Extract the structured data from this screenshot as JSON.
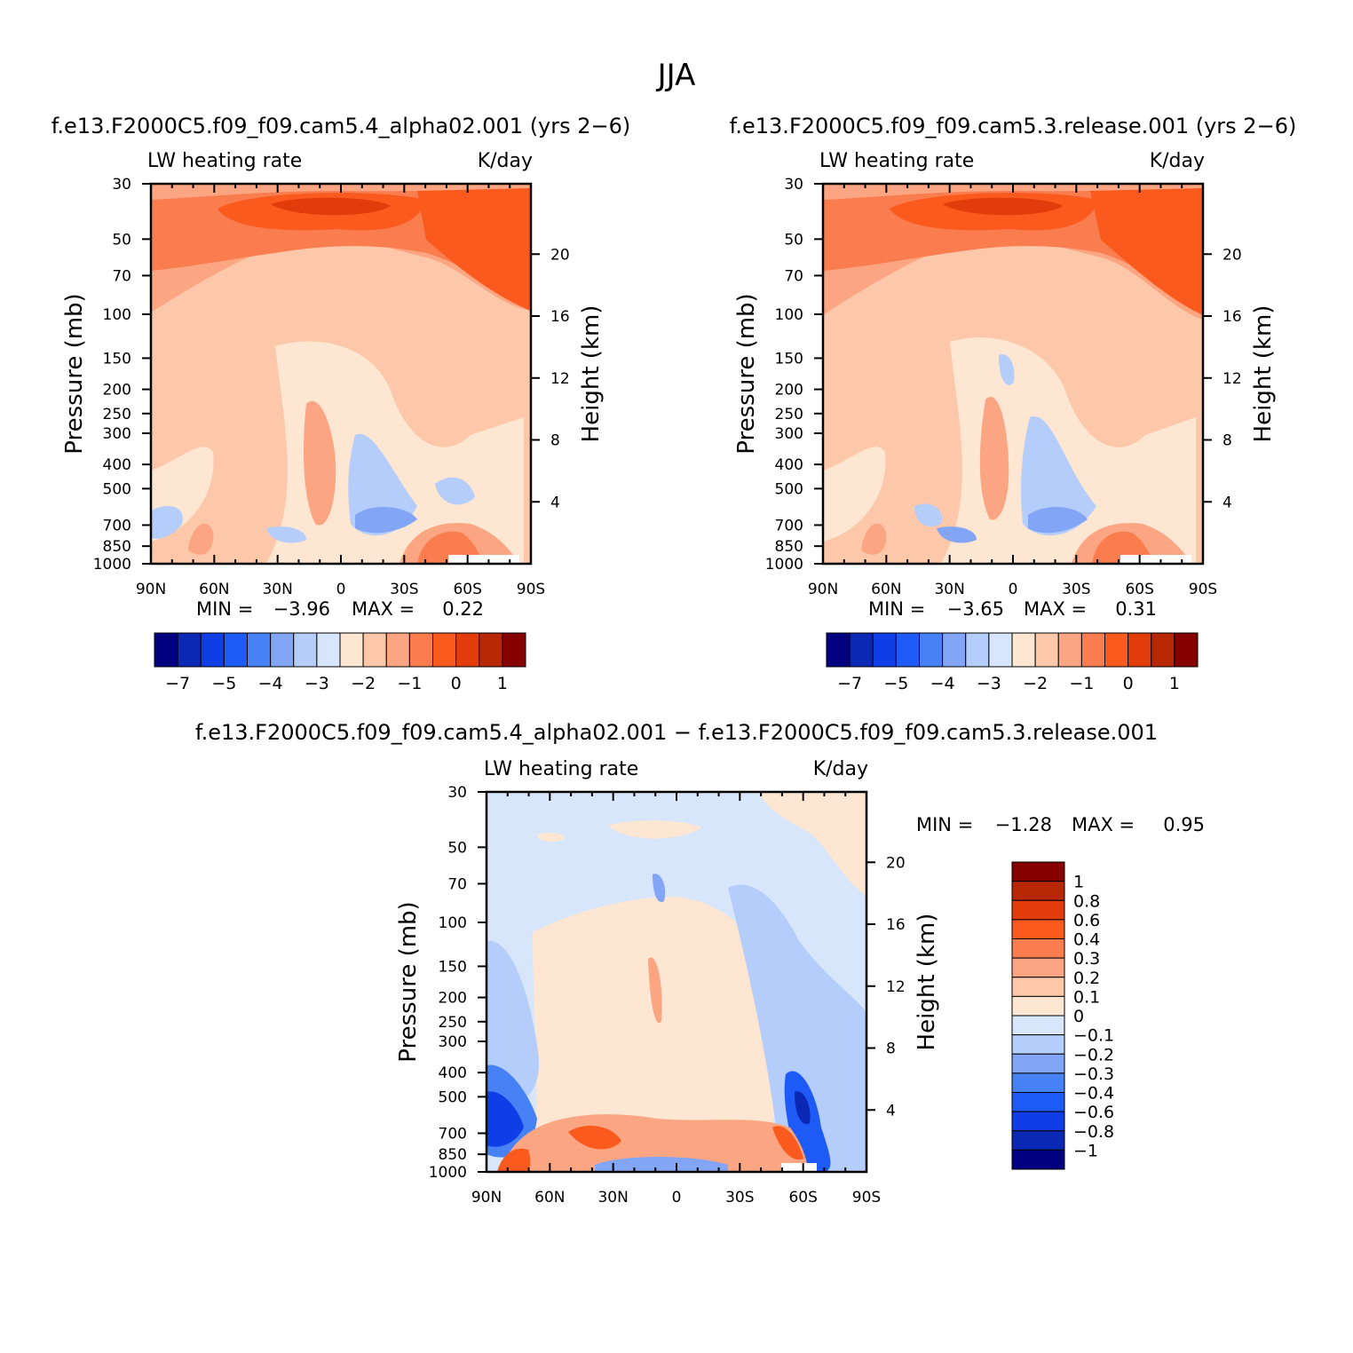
{
  "figure": {
    "season": "JJA",
    "diff_title": "f.e13.F2000C5.f09_f09.cam5.4_alpha02.001 − f.e13.F2000C5.f09_f09.cam5.3.release.001"
  },
  "chart_data": [
    {
      "type": "heatmap",
      "id": "case1",
      "title": "f.e13.F2000C5.f09_f09.cam5.4_alpha02.001 (yrs 2−6)",
      "left_label": "LW heating rate",
      "right_label": "K/day",
      "xlabel": "",
      "ylabel": "Pressure (mb)",
      "y2label": "Height (km)",
      "xticks": [
        "90N",
        "60N",
        "30N",
        "0",
        "30S",
        "60S",
        "90S"
      ],
      "yticks": [
        "30",
        "50",
        "70",
        "100",
        "150",
        "200",
        "250",
        "300",
        "400",
        "500",
        "700",
        "850",
        "1000"
      ],
      "y2ticks": [
        "20",
        "16",
        "12",
        "8",
        "4"
      ],
      "min_label": "MIN =",
      "min_value": "−3.96",
      "max_label": "MAX =",
      "max_value": "0.22",
      "colorbar_labels": [
        "−7",
        "−5",
        "−4",
        "−3",
        "−2",
        "−1",
        "0",
        "1"
      ],
      "colors": [
        "#000080",
        "#0a28b4",
        "#0f3ee6",
        "#1e5af5",
        "#4682f5",
        "#82a5f5",
        "#b4cdfa",
        "#d7e6fa",
        "#fde6d2",
        "#fdc8aa",
        "#fca582",
        "#fa7d50",
        "#fa5a1e",
        "#e13c0a",
        "#b92805",
        "#870000"
      ]
    },
    {
      "type": "heatmap",
      "id": "case2",
      "title": "f.e13.F2000C5.f09_f09.cam5.3.release.001 (yrs 2−6)",
      "left_label": "LW heating rate",
      "right_label": "K/day",
      "xlabel": "",
      "ylabel": "Pressure (mb)",
      "y2label": "Height (km)",
      "xticks": [
        "90N",
        "60N",
        "30N",
        "0",
        "30S",
        "60S",
        "90S"
      ],
      "yticks": [
        "30",
        "50",
        "70",
        "100",
        "150",
        "200",
        "250",
        "300",
        "400",
        "500",
        "700",
        "850",
        "1000"
      ],
      "y2ticks": [
        "20",
        "16",
        "12",
        "8",
        "4"
      ],
      "min_label": "MIN =",
      "min_value": "−3.65",
      "max_label": "MAX =",
      "max_value": "0.31",
      "colorbar_labels": [
        "−7",
        "−5",
        "−4",
        "−3",
        "−2",
        "−1",
        "0",
        "1"
      ],
      "colors": [
        "#000080",
        "#0a28b4",
        "#0f3ee6",
        "#1e5af5",
        "#4682f5",
        "#82a5f5",
        "#b4cdfa",
        "#d7e6fa",
        "#fde6d2",
        "#fdc8aa",
        "#fca582",
        "#fa7d50",
        "#fa5a1e",
        "#e13c0a",
        "#b92805",
        "#870000"
      ]
    },
    {
      "type": "heatmap",
      "id": "diff",
      "title": "",
      "left_label": "LW heating rate",
      "right_label": "K/day",
      "xlabel": "",
      "ylabel": "Pressure (mb)",
      "y2label": "Height (km)",
      "xticks": [
        "90N",
        "60N",
        "30N",
        "0",
        "30S",
        "60S",
        "90S"
      ],
      "yticks": [
        "30",
        "50",
        "70",
        "100",
        "150",
        "200",
        "250",
        "300",
        "400",
        "500",
        "700",
        "850",
        "1000"
      ],
      "y2ticks": [
        "20",
        "16",
        "12",
        "8",
        "4"
      ],
      "min_label": "MIN =",
      "min_value": "−1.28",
      "max_label": "MAX =",
      "max_value": "0.95",
      "colorbar_labels": [
        "1",
        "0.8",
        "0.6",
        "0.4",
        "0.3",
        "0.2",
        "0.1",
        "0",
        "−0.1",
        "−0.2",
        "−0.3",
        "−0.4",
        "−0.6",
        "−0.8",
        "−1"
      ],
      "colors": [
        "#870000",
        "#b92805",
        "#e13c0a",
        "#fa5a1e",
        "#fa7d50",
        "#fca582",
        "#fdc8aa",
        "#fde6d2",
        "#d7e6fa",
        "#b4cdfa",
        "#82a5f5",
        "#4682f5",
        "#1e5af5",
        "#0f3ee6",
        "#0a28b4",
        "#000080"
      ]
    }
  ]
}
